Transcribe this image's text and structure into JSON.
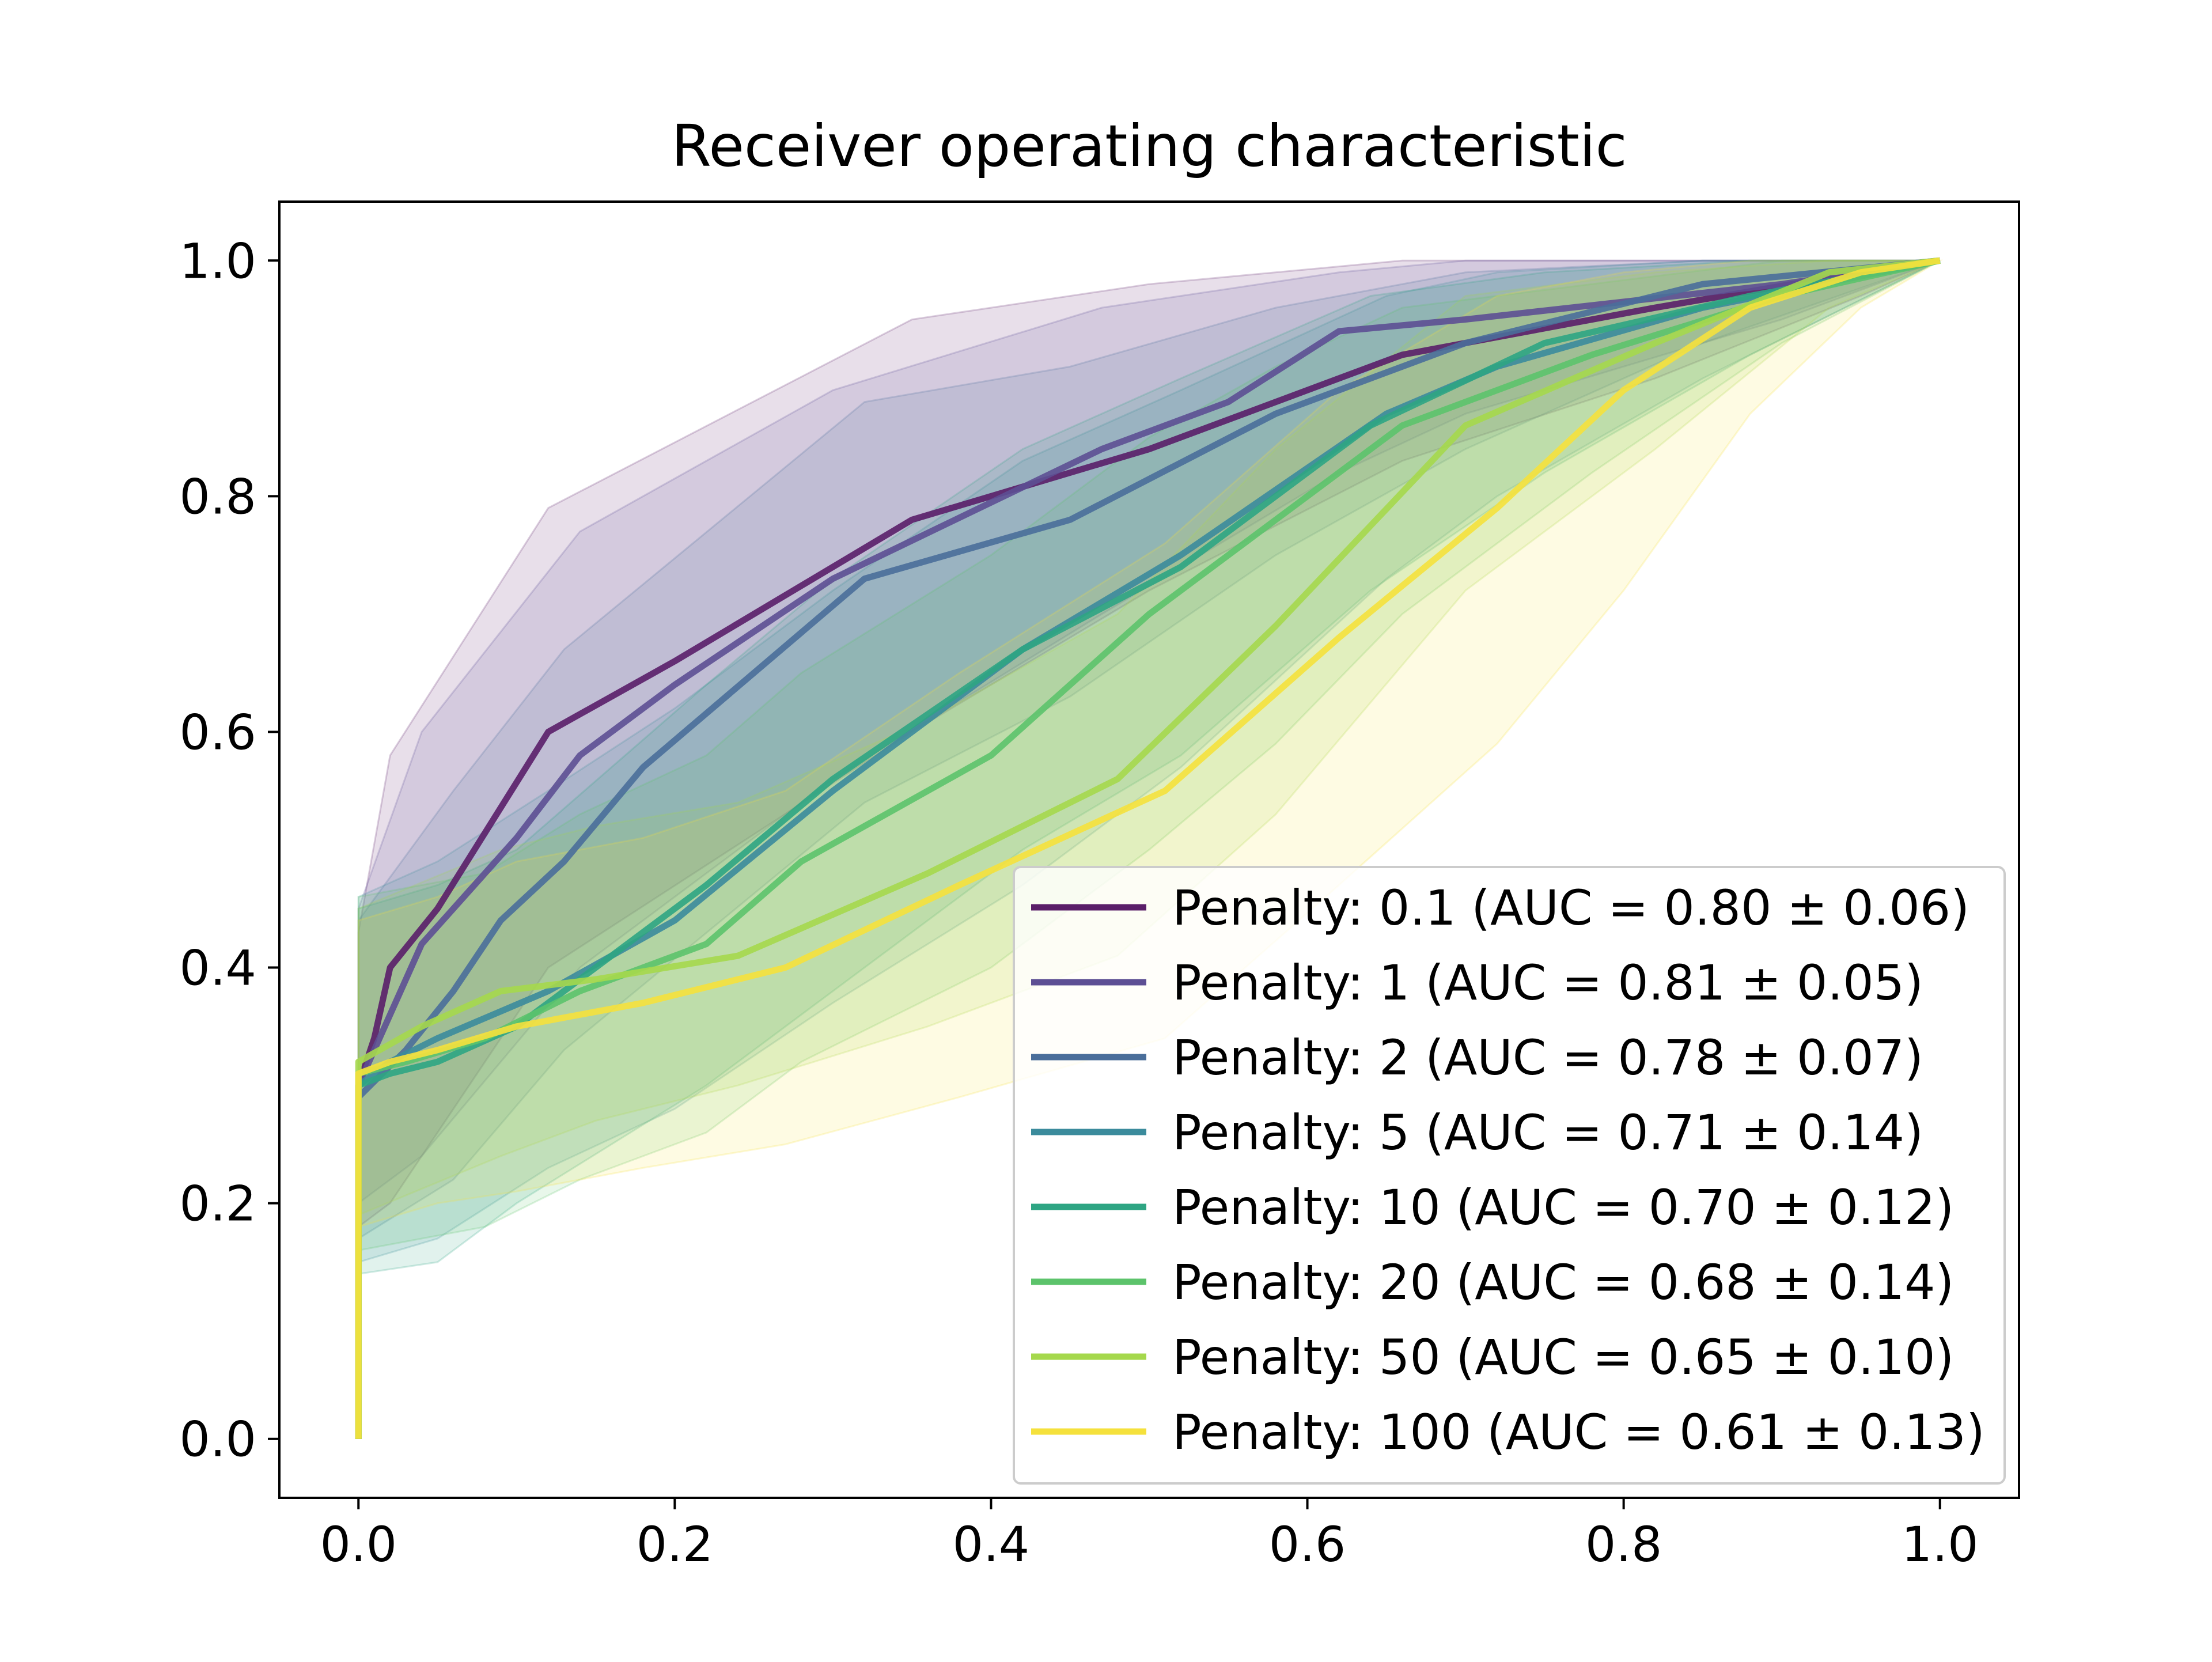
{
  "chart_data": {
    "type": "line",
    "title": "Receiver operating characteristic",
    "xlabel": "",
    "ylabel": "",
    "xlim": [
      -0.05,
      1.05
    ],
    "ylim": [
      -0.05,
      1.05
    ],
    "xticks": [
      0.0,
      0.2,
      0.4,
      0.6,
      0.8,
      1.0
    ],
    "yticks": [
      0.0,
      0.2,
      0.4,
      0.6,
      0.8,
      1.0
    ],
    "xtick_labels": [
      "0.0",
      "0.2",
      "0.4",
      "0.6",
      "0.8",
      "1.0"
    ],
    "ytick_labels": [
      "0.0",
      "0.2",
      "0.4",
      "0.6",
      "0.8",
      "1.0"
    ],
    "grid": false,
    "legend_position": "lower right",
    "series": [
      {
        "name": "Penalty: 0.1 (AUC = 0.80 ± 0.06)",
        "color": "#5a1e69",
        "points": [
          [
            0,
            0
          ],
          [
            0,
            0.3
          ],
          [
            0.01,
            0.34
          ],
          [
            0.02,
            0.4
          ],
          [
            0.05,
            0.45
          ],
          [
            0.12,
            0.6
          ],
          [
            0.2,
            0.66
          ],
          [
            0.35,
            0.78
          ],
          [
            0.5,
            0.84
          ],
          [
            0.66,
            0.92
          ],
          [
            0.82,
            0.96
          ],
          [
            0.95,
            0.99
          ],
          [
            1,
            1
          ]
        ],
        "band_lower": [
          [
            0,
            0.18
          ],
          [
            0.02,
            0.2
          ],
          [
            0.12,
            0.4
          ],
          [
            0.35,
            0.6
          ],
          [
            0.5,
            0.72
          ],
          [
            0.66,
            0.83
          ],
          [
            0.82,
            0.9
          ],
          [
            0.95,
            0.97
          ],
          [
            1,
            1
          ]
        ],
        "band_upper": [
          [
            0,
            0.43
          ],
          [
            0.02,
            0.58
          ],
          [
            0.12,
            0.79
          ],
          [
            0.35,
            0.95
          ],
          [
            0.5,
            0.98
          ],
          [
            0.66,
            1.0
          ],
          [
            0.82,
            1.0
          ],
          [
            0.95,
            1.0
          ],
          [
            1,
            1
          ]
        ]
      },
      {
        "name": "Penalty: 1 (AUC = 0.81 ± 0.05)",
        "color": "#5d4f94",
        "points": [
          [
            0,
            0
          ],
          [
            0,
            0.3
          ],
          [
            0.02,
            0.36
          ],
          [
            0.04,
            0.42
          ],
          [
            0.1,
            0.51
          ],
          [
            0.14,
            0.58
          ],
          [
            0.2,
            0.64
          ],
          [
            0.3,
            0.73
          ],
          [
            0.47,
            0.84
          ],
          [
            0.55,
            0.88
          ],
          [
            0.62,
            0.94
          ],
          [
            0.7,
            0.95
          ],
          [
            0.9,
            0.98
          ],
          [
            1,
            1
          ]
        ],
        "band_lower": [
          [
            0,
            0.2
          ],
          [
            0.04,
            0.24
          ],
          [
            0.14,
            0.4
          ],
          [
            0.3,
            0.56
          ],
          [
            0.47,
            0.7
          ],
          [
            0.62,
            0.82
          ],
          [
            0.7,
            0.87
          ],
          [
            0.9,
            0.95
          ],
          [
            1,
            1
          ]
        ],
        "band_upper": [
          [
            0,
            0.45
          ],
          [
            0.04,
            0.6
          ],
          [
            0.14,
            0.77
          ],
          [
            0.3,
            0.89
          ],
          [
            0.47,
            0.96
          ],
          [
            0.62,
            0.99
          ],
          [
            0.7,
            1.0
          ],
          [
            0.9,
            1.0
          ],
          [
            1,
            1
          ]
        ]
      },
      {
        "name": "Penalty: 2 (AUC = 0.78 ± 0.07)",
        "color": "#4a6e9a",
        "points": [
          [
            0,
            0
          ],
          [
            0,
            0.29
          ],
          [
            0.03,
            0.33
          ],
          [
            0.06,
            0.38
          ],
          [
            0.09,
            0.44
          ],
          [
            0.13,
            0.49
          ],
          [
            0.18,
            0.57
          ],
          [
            0.32,
            0.73
          ],
          [
            0.45,
            0.78
          ],
          [
            0.58,
            0.87
          ],
          [
            0.7,
            0.93
          ],
          [
            0.85,
            0.98
          ],
          [
            1,
            1
          ]
        ],
        "band_lower": [
          [
            0,
            0.17
          ],
          [
            0.06,
            0.22
          ],
          [
            0.13,
            0.33
          ],
          [
            0.32,
            0.54
          ],
          [
            0.45,
            0.63
          ],
          [
            0.58,
            0.75
          ],
          [
            0.7,
            0.84
          ],
          [
            0.85,
            0.93
          ],
          [
            1,
            1
          ]
        ],
        "band_upper": [
          [
            0,
            0.44
          ],
          [
            0.06,
            0.55
          ],
          [
            0.13,
            0.67
          ],
          [
            0.32,
            0.88
          ],
          [
            0.45,
            0.91
          ],
          [
            0.58,
            0.96
          ],
          [
            0.7,
            0.99
          ],
          [
            0.85,
            1.0
          ],
          [
            1,
            1
          ]
        ]
      },
      {
        "name": "Penalty: 5 (AUC = 0.71 ± 0.14)",
        "color": "#3b8b9c",
        "points": [
          [
            0,
            0
          ],
          [
            0,
            0.3
          ],
          [
            0.02,
            0.32
          ],
          [
            0.05,
            0.34
          ],
          [
            0.12,
            0.38
          ],
          [
            0.2,
            0.44
          ],
          [
            0.3,
            0.55
          ],
          [
            0.42,
            0.67
          ],
          [
            0.52,
            0.75
          ],
          [
            0.65,
            0.87
          ],
          [
            0.72,
            0.91
          ],
          [
            0.85,
            0.96
          ],
          [
            1,
            1
          ]
        ],
        "band_lower": [
          [
            0,
            0.15
          ],
          [
            0.05,
            0.17
          ],
          [
            0.12,
            0.23
          ],
          [
            0.2,
            0.28
          ],
          [
            0.3,
            0.37
          ],
          [
            0.42,
            0.47
          ],
          [
            0.52,
            0.57
          ],
          [
            0.65,
            0.73
          ],
          [
            0.72,
            0.8
          ],
          [
            0.85,
            0.9
          ],
          [
            1,
            1
          ]
        ],
        "band_upper": [
          [
            0,
            0.46
          ],
          [
            0.05,
            0.49
          ],
          [
            0.12,
            0.55
          ],
          [
            0.2,
            0.62
          ],
          [
            0.3,
            0.72
          ],
          [
            0.42,
            0.83
          ],
          [
            0.52,
            0.89
          ],
          [
            0.65,
            0.97
          ],
          [
            0.72,
            0.99
          ],
          [
            0.85,
            1.0
          ],
          [
            1,
            1
          ]
        ]
      },
      {
        "name": "Penalty: 10 (AUC = 0.70 ± 0.12)",
        "color": "#2ea583",
        "points": [
          [
            0,
            0
          ],
          [
            0,
            0.3
          ],
          [
            0.02,
            0.31
          ],
          [
            0.05,
            0.32
          ],
          [
            0.1,
            0.35
          ],
          [
            0.15,
            0.4
          ],
          [
            0.22,
            0.47
          ],
          [
            0.3,
            0.56
          ],
          [
            0.42,
            0.67
          ],
          [
            0.52,
            0.74
          ],
          [
            0.64,
            0.86
          ],
          [
            0.75,
            0.93
          ],
          [
            0.88,
            0.97
          ],
          [
            1,
            1
          ]
        ],
        "band_lower": [
          [
            0,
            0.14
          ],
          [
            0.05,
            0.15
          ],
          [
            0.1,
            0.2
          ],
          [
            0.22,
            0.3
          ],
          [
            0.3,
            0.38
          ],
          [
            0.42,
            0.5
          ],
          [
            0.52,
            0.58
          ],
          [
            0.64,
            0.72
          ],
          [
            0.75,
            0.82
          ],
          [
            0.88,
            0.92
          ],
          [
            1,
            1
          ]
        ],
        "band_upper": [
          [
            0,
            0.45
          ],
          [
            0.05,
            0.47
          ],
          [
            0.1,
            0.5
          ],
          [
            0.22,
            0.64
          ],
          [
            0.3,
            0.73
          ],
          [
            0.42,
            0.84
          ],
          [
            0.52,
            0.9
          ],
          [
            0.64,
            0.97
          ],
          [
            0.75,
            0.99
          ],
          [
            0.88,
            1.0
          ],
          [
            1,
            1
          ]
        ]
      },
      {
        "name": "Penalty: 20 (AUC = 0.68 ± 0.14)",
        "color": "#5cc36b",
        "points": [
          [
            0,
            0
          ],
          [
            0,
            0.31
          ],
          [
            0.03,
            0.32
          ],
          [
            0.08,
            0.34
          ],
          [
            0.14,
            0.38
          ],
          [
            0.22,
            0.42
          ],
          [
            0.28,
            0.49
          ],
          [
            0.4,
            0.58
          ],
          [
            0.5,
            0.7
          ],
          [
            0.58,
            0.78
          ],
          [
            0.66,
            0.86
          ],
          [
            0.78,
            0.92
          ],
          [
            0.9,
            0.97
          ],
          [
            1,
            1
          ]
        ],
        "band_lower": [
          [
            0,
            0.16
          ],
          [
            0.08,
            0.18
          ],
          [
            0.14,
            0.22
          ],
          [
            0.22,
            0.26
          ],
          [
            0.28,
            0.32
          ],
          [
            0.4,
            0.4
          ],
          [
            0.5,
            0.5
          ],
          [
            0.58,
            0.59
          ],
          [
            0.66,
            0.7
          ],
          [
            0.78,
            0.82
          ],
          [
            0.9,
            0.93
          ],
          [
            1,
            1
          ]
        ],
        "band_upper": [
          [
            0,
            0.46
          ],
          [
            0.08,
            0.48
          ],
          [
            0.14,
            0.53
          ],
          [
            0.22,
            0.58
          ],
          [
            0.28,
            0.65
          ],
          [
            0.4,
            0.75
          ],
          [
            0.5,
            0.85
          ],
          [
            0.58,
            0.91
          ],
          [
            0.66,
            0.96
          ],
          [
            0.78,
            0.98
          ],
          [
            0.9,
            1.0
          ],
          [
            1,
            1
          ]
        ]
      },
      {
        "name": "Penalty: 50 (AUC = 0.65 ± 0.10)",
        "color": "#a5d84c",
        "points": [
          [
            0,
            0
          ],
          [
            0,
            0.32
          ],
          [
            0.04,
            0.35
          ],
          [
            0.09,
            0.38
          ],
          [
            0.15,
            0.39
          ],
          [
            0.24,
            0.41
          ],
          [
            0.36,
            0.48
          ],
          [
            0.48,
            0.56
          ],
          [
            0.58,
            0.69
          ],
          [
            0.7,
            0.86
          ],
          [
            0.82,
            0.93
          ],
          [
            0.93,
            0.99
          ],
          [
            1,
            1
          ]
        ],
        "band_lower": [
          [
            0,
            0.19
          ],
          [
            0.09,
            0.24
          ],
          [
            0.15,
            0.27
          ],
          [
            0.24,
            0.3
          ],
          [
            0.36,
            0.35
          ],
          [
            0.48,
            0.41
          ],
          [
            0.58,
            0.53
          ],
          [
            0.7,
            0.72
          ],
          [
            0.82,
            0.84
          ],
          [
            0.93,
            0.96
          ],
          [
            1,
            1
          ]
        ],
        "band_upper": [
          [
            0,
            0.45
          ],
          [
            0.09,
            0.5
          ],
          [
            0.15,
            0.52
          ],
          [
            0.24,
            0.54
          ],
          [
            0.36,
            0.61
          ],
          [
            0.48,
            0.7
          ],
          [
            0.58,
            0.84
          ],
          [
            0.7,
            0.97
          ],
          [
            0.82,
            0.99
          ],
          [
            0.93,
            1.0
          ],
          [
            1,
            1
          ]
        ]
      },
      {
        "name": "Penalty: 100 (AUC = 0.61 ± 0.13)",
        "color": "#f5e13c",
        "points": [
          [
            0,
            0
          ],
          [
            0,
            0.31
          ],
          [
            0.02,
            0.32
          ],
          [
            0.05,
            0.33
          ],
          [
            0.1,
            0.35
          ],
          [
            0.18,
            0.37
          ],
          [
            0.27,
            0.4
          ],
          [
            0.38,
            0.47
          ],
          [
            0.51,
            0.55
          ],
          [
            0.62,
            0.68
          ],
          [
            0.72,
            0.79
          ],
          [
            0.8,
            0.89
          ],
          [
            0.88,
            0.96
          ],
          [
            0.95,
            0.99
          ],
          [
            1,
            1
          ]
        ],
        "band_lower": [
          [
            0,
            0.18
          ],
          [
            0.05,
            0.2
          ],
          [
            0.1,
            0.21
          ],
          [
            0.18,
            0.23
          ],
          [
            0.27,
            0.25
          ],
          [
            0.38,
            0.29
          ],
          [
            0.51,
            0.34
          ],
          [
            0.62,
            0.47
          ],
          [
            0.72,
            0.59
          ],
          [
            0.8,
            0.72
          ],
          [
            0.88,
            0.87
          ],
          [
            0.95,
            0.96
          ],
          [
            1,
            1
          ]
        ],
        "band_upper": [
          [
            0,
            0.44
          ],
          [
            0.05,
            0.46
          ],
          [
            0.1,
            0.49
          ],
          [
            0.18,
            0.51
          ],
          [
            0.27,
            0.55
          ],
          [
            0.38,
            0.65
          ],
          [
            0.51,
            0.76
          ],
          [
            0.62,
            0.89
          ],
          [
            0.72,
            0.97
          ],
          [
            0.8,
            0.99
          ],
          [
            0.88,
            1.0
          ],
          [
            1,
            1
          ]
        ]
      }
    ]
  }
}
